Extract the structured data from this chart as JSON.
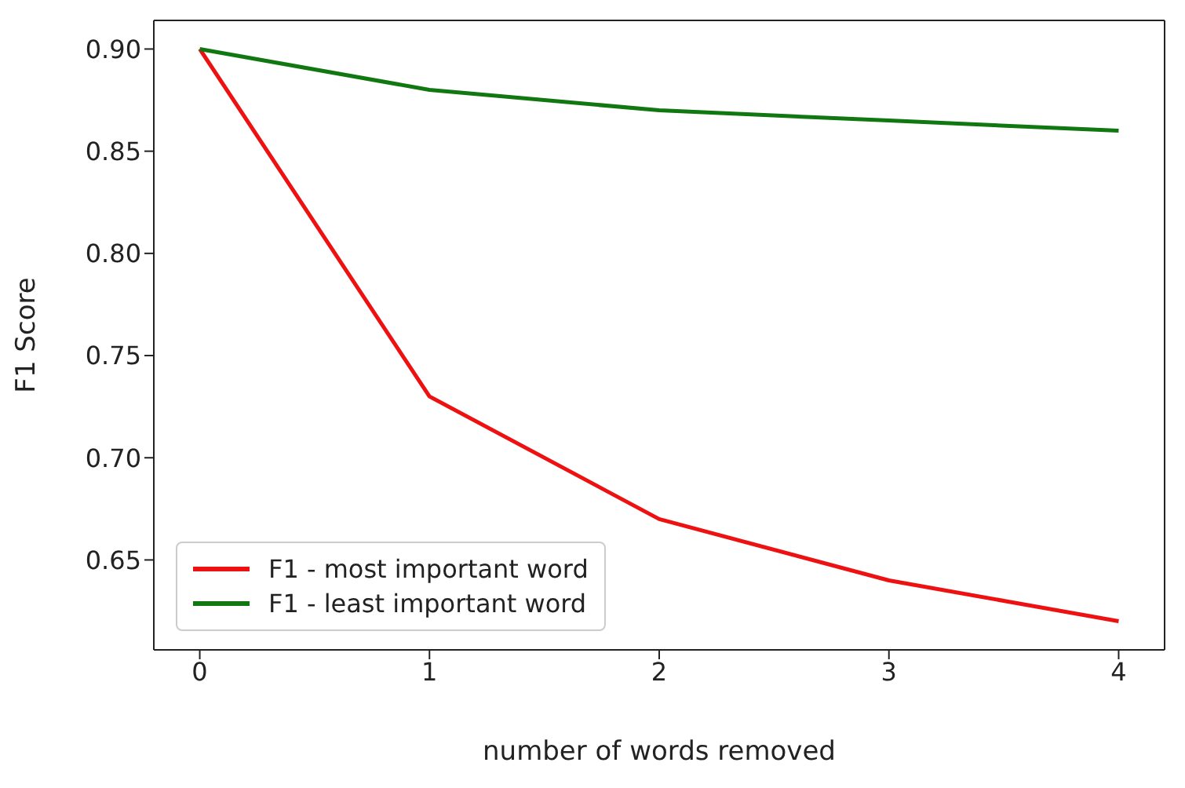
{
  "chart_data": {
    "type": "line",
    "xlabel": "number of words removed",
    "ylabel": "F1 Score",
    "x": [
      0,
      1,
      2,
      3,
      4
    ],
    "series": [
      {
        "name": "F1 - most important word",
        "color": "#ee1111",
        "values": [
          0.9,
          0.73,
          0.67,
          0.64,
          0.62
        ]
      },
      {
        "name": "F1 - least important word",
        "color": "#117711",
        "values": [
          0.9,
          0.88,
          0.87,
          0.865,
          0.86
        ]
      }
    ],
    "xlim": [
      -0.2,
      4.2
    ],
    "xticks": [
      0,
      1,
      2,
      3,
      4
    ],
    "ylim": [
      0.606,
      0.914
    ],
    "yticks": [
      {
        "value": 0.65,
        "label": "0.65"
      },
      {
        "value": 0.7,
        "label": "0.70"
      },
      {
        "value": 0.75,
        "label": "0.75"
      },
      {
        "value": 0.8,
        "label": "0.80"
      },
      {
        "value": 0.85,
        "label": "0.85"
      },
      {
        "value": 0.9,
        "label": "0.90"
      }
    ],
    "grid": false,
    "legend": "bottom left",
    "marker": "none",
    "line_style": "solid"
  }
}
